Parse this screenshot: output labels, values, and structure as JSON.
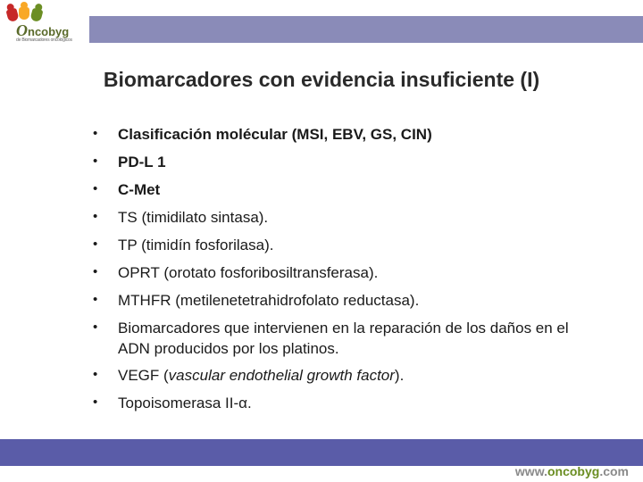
{
  "colors": {
    "header_bar": "#8a8bb8",
    "footer_bar": "#5a5ca8",
    "title_color": "#2a2a2a",
    "text_color": "#1a1a1a",
    "logo_text_color": "#5a6a2a"
  },
  "logo": {
    "brand_html": "<span class=\"o1\">O</span>ncobyg",
    "subtitle": "de Biomarcadores oncológicos"
  },
  "title": "Biomarcadores con evidencia insuficiente (I)",
  "bullets": [
    {
      "html": "<span class=\"bold\">Clasificación molécular (MSI, EBV, GS, CIN)</span>"
    },
    {
      "html": "<span class=\"bold\">PD-L 1</span>"
    },
    {
      "html": "<span class=\"bold\">C-Met</span>"
    },
    {
      "html": "TS (timidilato sintasa)."
    },
    {
      "html": "TP (timidín fosforilasa)."
    },
    {
      "html": "OPRT (orotato fosforibosiltransferasa)."
    },
    {
      "html": "MTHFR (metilenetetrahidrofolato reductasa)."
    },
    {
      "html": "Biomarcadores que intervienen en la reparación de los daños en el ADN producidos por los platinos."
    },
    {
      "html": "VEGF (<span class=\"italic\">vascular endothelial growth factor</span>)."
    },
    {
      "html": "Topoisomerasa II-α."
    }
  ],
  "footer": {
    "url_html": "www.<span class=\"green\">oncobyg</span>.com"
  }
}
